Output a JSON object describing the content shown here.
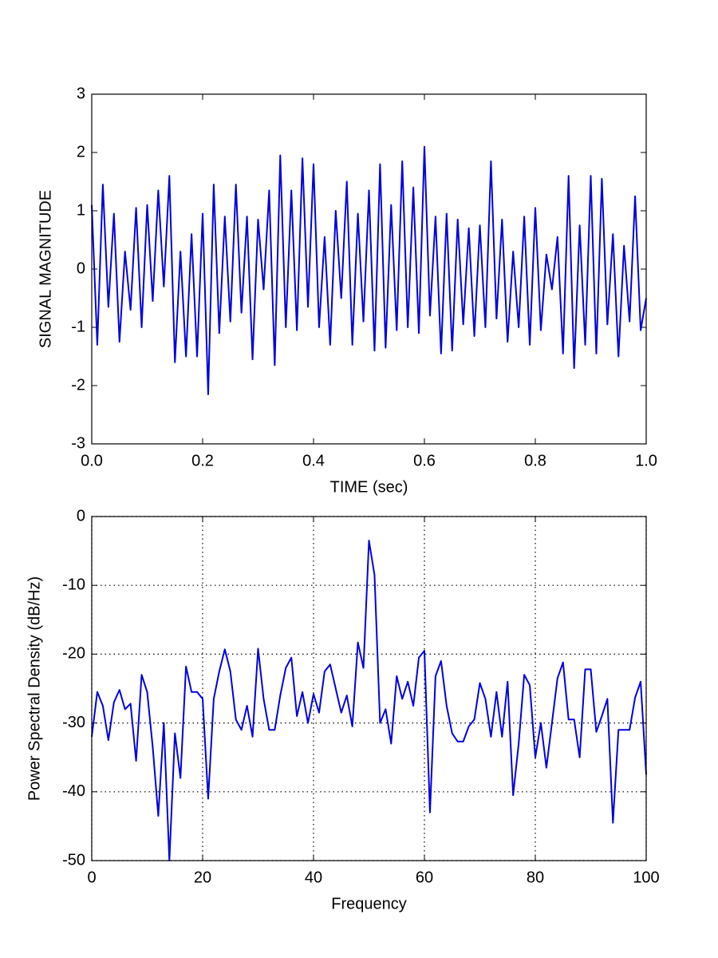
{
  "chart_data": [
    {
      "type": "line",
      "xlabel": "TIME (sec)",
      "ylabel": "SIGNAL MAGNITUDE",
      "grid": false,
      "xlim": [
        0,
        1
      ],
      "ylim": [
        -3,
        3
      ],
      "xticks": [
        {
          "value": 0,
          "label": "0.0"
        },
        0.2,
        0.4,
        0.6,
        0.8,
        {
          "value": 1,
          "label": "1.0"
        }
      ],
      "yticks": [
        -3,
        -2,
        -1,
        0,
        1,
        2,
        3
      ],
      "x": [
        0,
        0.01,
        0.02,
        0.03,
        0.04,
        0.05,
        0.06,
        0.07,
        0.08,
        0.09,
        0.1,
        0.11,
        0.12,
        0.13,
        0.14,
        0.15,
        0.16,
        0.17,
        0.18,
        0.19,
        0.2,
        0.21,
        0.22,
        0.23,
        0.24,
        0.25,
        0.26,
        0.27,
        0.28,
        0.29,
        0.3,
        0.31,
        0.32,
        0.33,
        0.34,
        0.35,
        0.36,
        0.37,
        0.38,
        0.39,
        0.4,
        0.41,
        0.42,
        0.43,
        0.44,
        0.45,
        0.46,
        0.47,
        0.48,
        0.49,
        0.5,
        0.51,
        0.52,
        0.53,
        0.54,
        0.55,
        0.56,
        0.57,
        0.58,
        0.59,
        0.6,
        0.61,
        0.62,
        0.63,
        0.64,
        0.65,
        0.66,
        0.67,
        0.68,
        0.69,
        0.7,
        0.71,
        0.72,
        0.73,
        0.74,
        0.75,
        0.76,
        0.77,
        0.78,
        0.79,
        0.8,
        0.81,
        0.82,
        0.83,
        0.84,
        0.85,
        0.86,
        0.87,
        0.88,
        0.89,
        0.9,
        0.91,
        0.92,
        0.93,
        0.94,
        0.95,
        0.96,
        0.97,
        0.98,
        0.99,
        1
      ],
      "series": [
        {
          "color": "#0000e0",
          "values": [
            1.1,
            -1.3,
            1.45,
            -0.65,
            0.95,
            -1.25,
            0.3,
            -0.7,
            1.05,
            -1.0,
            1.1,
            -0.55,
            1.35,
            -0.3,
            1.6,
            -1.6,
            0.3,
            -1.5,
            0.6,
            -1.5,
            0.95,
            -2.15,
            1.45,
            -1.1,
            0.9,
            -0.9,
            1.45,
            -0.75,
            0.9,
            -1.55,
            0.85,
            -0.35,
            1.35,
            -1.65,
            1.95,
            -1.0,
            1.35,
            -1.05,
            1.9,
            -0.65,
            1.8,
            -1.0,
            0.55,
            -1.3,
            1.0,
            -0.5,
            1.5,
            -1.3,
            0.95,
            -0.9,
            1.35,
            -1.4,
            1.8,
            -1.35,
            1.1,
            -1.05,
            1.85,
            -1.0,
            1.4,
            -1.1,
            2.1,
            -0.8,
            0.9,
            -1.45,
            0.95,
            -1.4,
            0.85,
            -0.95,
            0.7,
            -1.15,
            0.75,
            -1.0,
            1.85,
            -0.85,
            0.85,
            -1.25,
            0.3,
            -1.0,
            0.9,
            -1.3,
            1.05,
            -1.05,
            0.25,
            -0.35,
            0.55,
            -1.45,
            1.6,
            -1.7,
            0.75,
            -1.3,
            1.6,
            -1.45,
            1.55,
            -0.95,
            0.6,
            -1.5,
            0.4,
            -0.9,
            1.25,
            -1.05,
            -0.5
          ]
        }
      ]
    },
    {
      "type": "line",
      "xlabel": "Frequency",
      "ylabel": "Power Spectral Density (dB/Hz)",
      "grid": true,
      "xlim": [
        0,
        100
      ],
      "ylim": [
        -50,
        0
      ],
      "xticks": [
        0,
        20,
        40,
        60,
        80,
        100
      ],
      "yticks": [
        -50,
        -40,
        -30,
        -20,
        -10,
        0
      ],
      "x": [
        0,
        1,
        2,
        3,
        4,
        5,
        6,
        7,
        8,
        9,
        10,
        11,
        12,
        13,
        14,
        15,
        16,
        17,
        18,
        19,
        20,
        21,
        22,
        23,
        24,
        25,
        26,
        27,
        28,
        29,
        30,
        31,
        32,
        33,
        34,
        35,
        36,
        37,
        38,
        39,
        40,
        41,
        42,
        43,
        44,
        45,
        46,
        47,
        48,
        49,
        50,
        51,
        52,
        53,
        54,
        55,
        56,
        57,
        58,
        59,
        60,
        61,
        62,
        63,
        64,
        65,
        66,
        67,
        68,
        69,
        70,
        71,
        72,
        73,
        74,
        75,
        76,
        77,
        78,
        79,
        80,
        81,
        82,
        83,
        84,
        85,
        86,
        87,
        88,
        89,
        90,
        91,
        92,
        93,
        94,
        95,
        96,
        97,
        98,
        99,
        100
      ],
      "series": [
        {
          "color": "#0000e0",
          "values": [
            -32,
            -25.5,
            -27.5,
            -32.5,
            -27,
            -25.2,
            -28,
            -27.2,
            -35.5,
            -23,
            -25.5,
            -33.5,
            -43.5,
            -30,
            -50,
            -31.5,
            -38,
            -21.8,
            -25.5,
            -25.5,
            -26.5,
            -41,
            -26.5,
            -22.5,
            -19.3,
            -22.5,
            -29.5,
            -31,
            -27.5,
            -32,
            -19.2,
            -26.5,
            -31,
            -31,
            -26,
            -22,
            -20.5,
            -29,
            -25.5,
            -30,
            -25.8,
            -28.5,
            -22.5,
            -21.5,
            -25,
            -28.5,
            -26,
            -30.5,
            -18.3,
            -22,
            -3.5,
            -8.5,
            -30,
            -28,
            -33,
            -23.2,
            -26.5,
            -24,
            -27.5,
            -20.5,
            -19.5,
            -43,
            -23.2,
            -21,
            -27.5,
            -31.5,
            -32.7,
            -32.7,
            -30.5,
            -29.5,
            -24.2,
            -26.5,
            -32,
            -25.5,
            -32,
            -24,
            -40.5,
            -33,
            -23,
            -24.5,
            -35,
            -30,
            -36.5,
            -30,
            -23.5,
            -21.2,
            -29.5,
            -29.5,
            -35,
            -22.2,
            -22.2,
            -31.3,
            -29,
            -26.5,
            -44.5,
            -31,
            -31,
            -31,
            -26.3,
            -24,
            -37.5
          ]
        }
      ]
    }
  ]
}
